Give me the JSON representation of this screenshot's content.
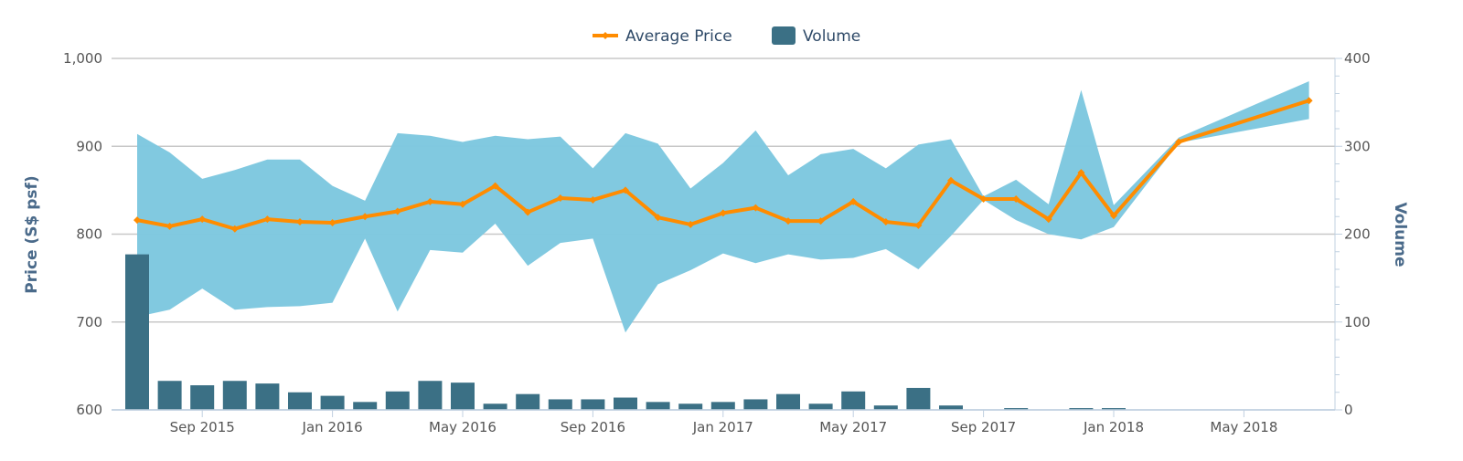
{
  "chart_data": {
    "type": "line",
    "legend": [
      "Average Price",
      "Volume"
    ],
    "legend_position": "top-center",
    "x_labels": [
      "Sep 2015",
      "Jan 2016",
      "May 2016",
      "Sep 2016",
      "Jan 2017",
      "May 2017",
      "Sep 2017",
      "Jan 2018",
      "May 2018"
    ],
    "x_label_months": [
      2,
      6,
      10,
      14,
      18,
      22,
      26,
      30,
      34
    ],
    "x_start": "Jul 2015",
    "ylabel": "Price (S$ psf)",
    "ylabel_right": "Volume",
    "ylim": [
      600,
      1000
    ],
    "ylim_right": [
      0,
      400
    ],
    "yticks": [
      "600",
      "700",
      "800",
      "900",
      "1,000"
    ],
    "yticks_right": [
      "0",
      "100",
      "200",
      "300",
      "400"
    ],
    "grid": true,
    "series": [
      {
        "name": "Average Price",
        "type": "line",
        "color": "#ff8c00",
        "month_index": [
          0,
          1,
          2,
          3,
          4,
          5,
          6,
          7,
          8,
          9,
          10,
          11,
          12,
          13,
          14,
          15,
          16,
          17,
          18,
          19,
          20,
          21,
          22,
          23,
          24,
          25,
          26,
          27,
          28,
          29,
          30,
          32,
          36
        ],
        "values": [
          816,
          809,
          817,
          806,
          817,
          814,
          813,
          820,
          826,
          837,
          834,
          855,
          825,
          841,
          839,
          850,
          819,
          811,
          824,
          830,
          815,
          815,
          837,
          814,
          810,
          861,
          840,
          840,
          817,
          870,
          821,
          905,
          952
        ]
      },
      {
        "name": "Price Range",
        "type": "arearange",
        "color": "#7ec8df",
        "month_index": [
          0,
          1,
          2,
          3,
          4,
          5,
          6,
          7,
          8,
          9,
          10,
          11,
          12,
          13,
          14,
          15,
          16,
          17,
          18,
          19,
          20,
          21,
          22,
          23,
          24,
          25,
          26,
          27,
          28,
          29,
          30,
          32,
          36
        ],
        "high": [
          914,
          893,
          863,
          873,
          885,
          885,
          855,
          838,
          915,
          912,
          905,
          912,
          908,
          911,
          875,
          915,
          903,
          852,
          881,
          918,
          867,
          891,
          897,
          875,
          902,
          908,
          843,
          862,
          834,
          964,
          833,
          910,
          974
        ],
        "low": [
          706,
          714,
          738,
          714,
          717,
          718,
          722,
          795,
          712,
          782,
          779,
          812,
          764,
          790,
          795,
          688,
          743,
          759,
          778,
          767,
          777,
          771,
          773,
          783,
          760,
          798,
          839,
          816,
          800,
          794,
          808,
          904,
          931
        ]
      },
      {
        "name": "Volume",
        "type": "bar",
        "axis": "right",
        "color": "#3b7085",
        "month_index": [
          0,
          1,
          2,
          3,
          4,
          5,
          6,
          7,
          8,
          9,
          10,
          11,
          12,
          13,
          14,
          15,
          16,
          17,
          18,
          19,
          20,
          21,
          22,
          23,
          24,
          25,
          26,
          27,
          28,
          29,
          30
        ],
        "values": [
          177,
          33,
          28,
          33,
          30,
          20,
          16,
          9,
          21,
          33,
          31,
          7,
          18,
          12,
          12,
          14,
          9,
          7,
          9,
          12,
          18,
          7,
          21,
          5,
          25,
          5,
          0,
          2,
          0,
          2,
          2
        ]
      }
    ]
  }
}
